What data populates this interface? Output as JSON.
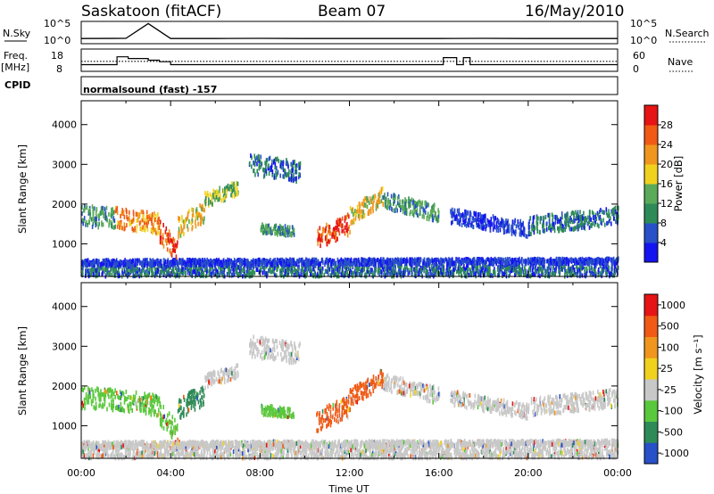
{
  "header": {
    "station": "Saskatoon (fitACF)",
    "beam": "Beam 07",
    "date": "16/May/2010"
  },
  "panels": {
    "nsky_label": "N.Sky",
    "nsearch_label": "N.Search",
    "freq_label": "Freq.",
    "freq_unit": "[MHz]",
    "nave_label": "Nave",
    "cpid_label": "CPID",
    "cpid_text": "normalsound (fast) -157"
  },
  "colors": {
    "power": [
      "#1414f0",
      "#2850c8",
      "#2e8b57",
      "#5aaa5a",
      "#f0d21e",
      "#f0961e",
      "#f05a14",
      "#e61414"
    ],
    "velocity": [
      "#e61414",
      "#f05a14",
      "#f0961e",
      "#f0d21e",
      "#c8c8c8",
      "#5ac83c",
      "#2e8b57",
      "#2850c8"
    ]
  },
  "chart_data": [
    {
      "type": "line",
      "name": "nsky-nsearch-panel",
      "ylabel": "N.Sky",
      "y2label": "N.Search",
      "ylim": [
        1,
        100000
      ],
      "yscale": "log",
      "ytick_labels": [
        "10^5",
        "10^0"
      ],
      "y2tick_labels": [
        "10^5",
        "10^0"
      ],
      "x": [
        0,
        2,
        3,
        4,
        6,
        8,
        10,
        12,
        14,
        16,
        18,
        20,
        22,
        24
      ],
      "series": [
        {
          "values": [
            8,
            9,
            80000,
            8,
            8,
            9,
            8,
            8,
            8,
            8,
            9,
            8,
            8,
            8
          ]
        }
      ]
    },
    {
      "type": "line",
      "name": "freq-nave-panel",
      "ylabel": "Freq. [MHz]",
      "y2label": "Nave",
      "ylim": [
        8,
        18
      ],
      "y2lim": [
        0,
        60
      ],
      "ytick_labels": [
        "18",
        "8"
      ],
      "y2tick_labels": [
        "60",
        "0"
      ],
      "series": [
        {
          "style": "solid",
          "x": [
            0,
            1.6,
            1.6,
            2.1,
            2.1,
            3.0,
            3.0,
            3.5,
            3.5,
            4.0,
            4.0,
            16.2,
            16.2,
            16.8,
            16.8,
            17.1,
            17.1,
            17.4,
            17.4,
            24
          ],
          "values": [
            10.6,
            10.6,
            14.8,
            14.8,
            13.9,
            13.9,
            13.0,
            13.0,
            12.2,
            12.2,
            10.6,
            10.6,
            14.4,
            14.4,
            10.6,
            10.6,
            14.4,
            14.4,
            10.6,
            10.6
          ]
        },
        {
          "style": "dotted",
          "x": [
            0,
            24
          ],
          "values": [
            12.4,
            12.4
          ]
        }
      ]
    },
    {
      "type": "heatmap",
      "name": "power-panel",
      "ylabel": "Slant Range [km]",
      "ylim": [
        180,
        4600
      ],
      "ytick_labels": [
        "1000",
        "2000",
        "3000",
        "4000"
      ],
      "yticks": [
        1000,
        2000,
        3000,
        4000
      ],
      "colorbar_label": "Power [dB]",
      "colorbar_ticks": [
        "4",
        "8",
        "12",
        "16",
        "20",
        "24",
        "28"
      ]
    },
    {
      "type": "heatmap",
      "name": "velocity-panel",
      "xlabel": "Time UT",
      "ylabel": "Slant Range [km]",
      "ylim": [
        180,
        4600
      ],
      "ytick_labels": [
        "1000",
        "2000",
        "3000",
        "4000"
      ],
      "yticks": [
        1000,
        2000,
        3000,
        4000
      ],
      "xtick_labels": [
        "00:00",
        "04:00",
        "08:00",
        "12:00",
        "16:00",
        "20:00",
        "00:00"
      ],
      "xticks": [
        0,
        4,
        8,
        12,
        16,
        20,
        24
      ],
      "colorbar_label": "Velocity [m s⁻¹]",
      "colorbar_ticks": [
        "1000",
        "500",
        "100",
        "25",
        "-25",
        "-100",
        "-500",
        "-1000"
      ]
    }
  ]
}
